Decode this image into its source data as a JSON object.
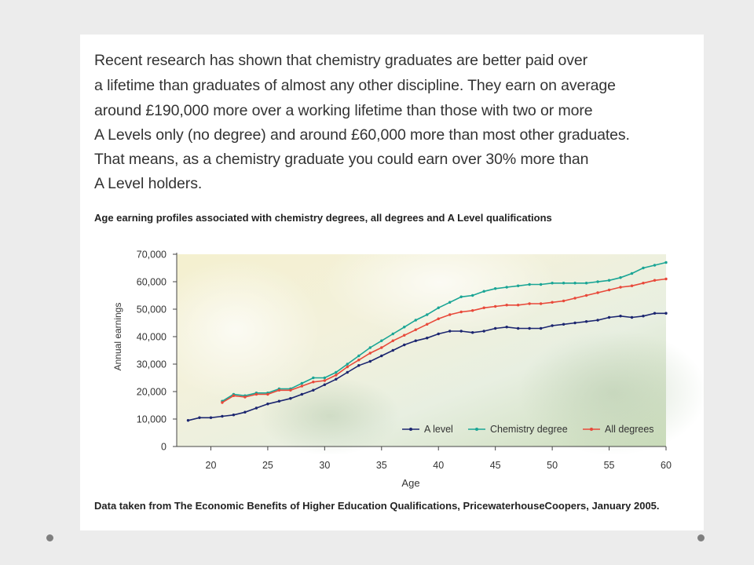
{
  "text": {
    "lines": [
      "Recent research has shown that chemistry graduates are better paid over",
      "a lifetime than graduates of almost any other discipline. They earn on average",
      "around £190,000 more over a working lifetime than those with two or more",
      "A Levels only (no degree) and around £60,000 more than most other graduates.",
      "That means, as a chemistry graduate you could earn over 30% more than",
      "A Level holders."
    ],
    "source": "Data taken from The Economic Benefits of Higher Education Qualifications, PricewaterhouseCoopers, January 2005."
  },
  "chart_data": {
    "type": "line",
    "title": "Age earning profiles associated with chemistry degrees, all degrees and A Level qualifications",
    "xlabel": "Age",
    "ylabel": "Annual earnings",
    "xlim": [
      17,
      60
    ],
    "ylim": [
      0,
      70000
    ],
    "xticks": [
      20,
      25,
      30,
      35,
      40,
      45,
      50,
      55,
      60
    ],
    "yticks": [
      0,
      10000,
      20000,
      30000,
      40000,
      50000,
      60000,
      70000
    ],
    "ytick_labels": [
      "0",
      "10,000",
      "20,000",
      "30,000",
      "40,000",
      "50,000",
      "60,000",
      "70,000"
    ],
    "legend_position": "bottom-right",
    "series": [
      {
        "name": "A level",
        "color": "#1c2670",
        "x": [
          18,
          19,
          20,
          21,
          22,
          23,
          24,
          25,
          26,
          27,
          28,
          29,
          30,
          31,
          32,
          33,
          34,
          35,
          36,
          37,
          38,
          39,
          40,
          41,
          42,
          43,
          44,
          45,
          46,
          47,
          48,
          49,
          50,
          51,
          52,
          53,
          54,
          55,
          56,
          57,
          58,
          59,
          60
        ],
        "y": [
          9500,
          10500,
          10500,
          11000,
          11500,
          12500,
          14000,
          15500,
          16500,
          17500,
          19000,
          20500,
          22500,
          24500,
          27000,
          29500,
          31000,
          33000,
          35000,
          37000,
          38500,
          39500,
          41000,
          42000,
          42000,
          41500,
          42000,
          43000,
          43500,
          43000,
          43000,
          43000,
          44000,
          44500,
          45000,
          45500,
          46000,
          47000,
          47500,
          47000,
          47500,
          48500,
          48500
        ]
      },
      {
        "name": "Chemistry degree",
        "color": "#1aa595",
        "x": [
          21,
          22,
          23,
          24,
          25,
          26,
          27,
          28,
          29,
          30,
          31,
          32,
          33,
          34,
          35,
          36,
          37,
          38,
          39,
          40,
          41,
          42,
          43,
          44,
          45,
          46,
          47,
          48,
          49,
          50,
          51,
          52,
          53,
          54,
          55,
          56,
          57,
          58,
          59,
          60
        ],
        "y": [
          16500,
          19000,
          18500,
          19500,
          19500,
          21000,
          21000,
          23000,
          25000,
          25000,
          27000,
          30000,
          33000,
          36000,
          38500,
          41000,
          43500,
          46000,
          48000,
          50500,
          52500,
          54500,
          55000,
          56500,
          57500,
          58000,
          58500,
          59000,
          59000,
          59500,
          59500,
          59500,
          59500,
          60000,
          60500,
          61500,
          63000,
          65000,
          66000,
          67000
        ]
      },
      {
        "name": "All degrees",
        "color": "#e8493a",
        "x": [
          21,
          22,
          23,
          24,
          25,
          26,
          27,
          28,
          29,
          30,
          31,
          32,
          33,
          34,
          35,
          36,
          37,
          38,
          39,
          40,
          41,
          42,
          43,
          44,
          45,
          46,
          47,
          48,
          49,
          50,
          51,
          52,
          53,
          54,
          55,
          56,
          57,
          58,
          59,
          60
        ],
        "y": [
          16000,
          18500,
          18000,
          19000,
          19000,
          20500,
          20500,
          22000,
          23500,
          24000,
          26000,
          29000,
          31500,
          34000,
          36000,
          38500,
          40500,
          42500,
          44500,
          46500,
          48000,
          49000,
          49500,
          50500,
          51000,
          51500,
          51500,
          52000,
          52000,
          52500,
          53000,
          54000,
          55000,
          56000,
          57000,
          58000,
          58500,
          59500,
          60500,
          61000
        ]
      }
    ]
  }
}
